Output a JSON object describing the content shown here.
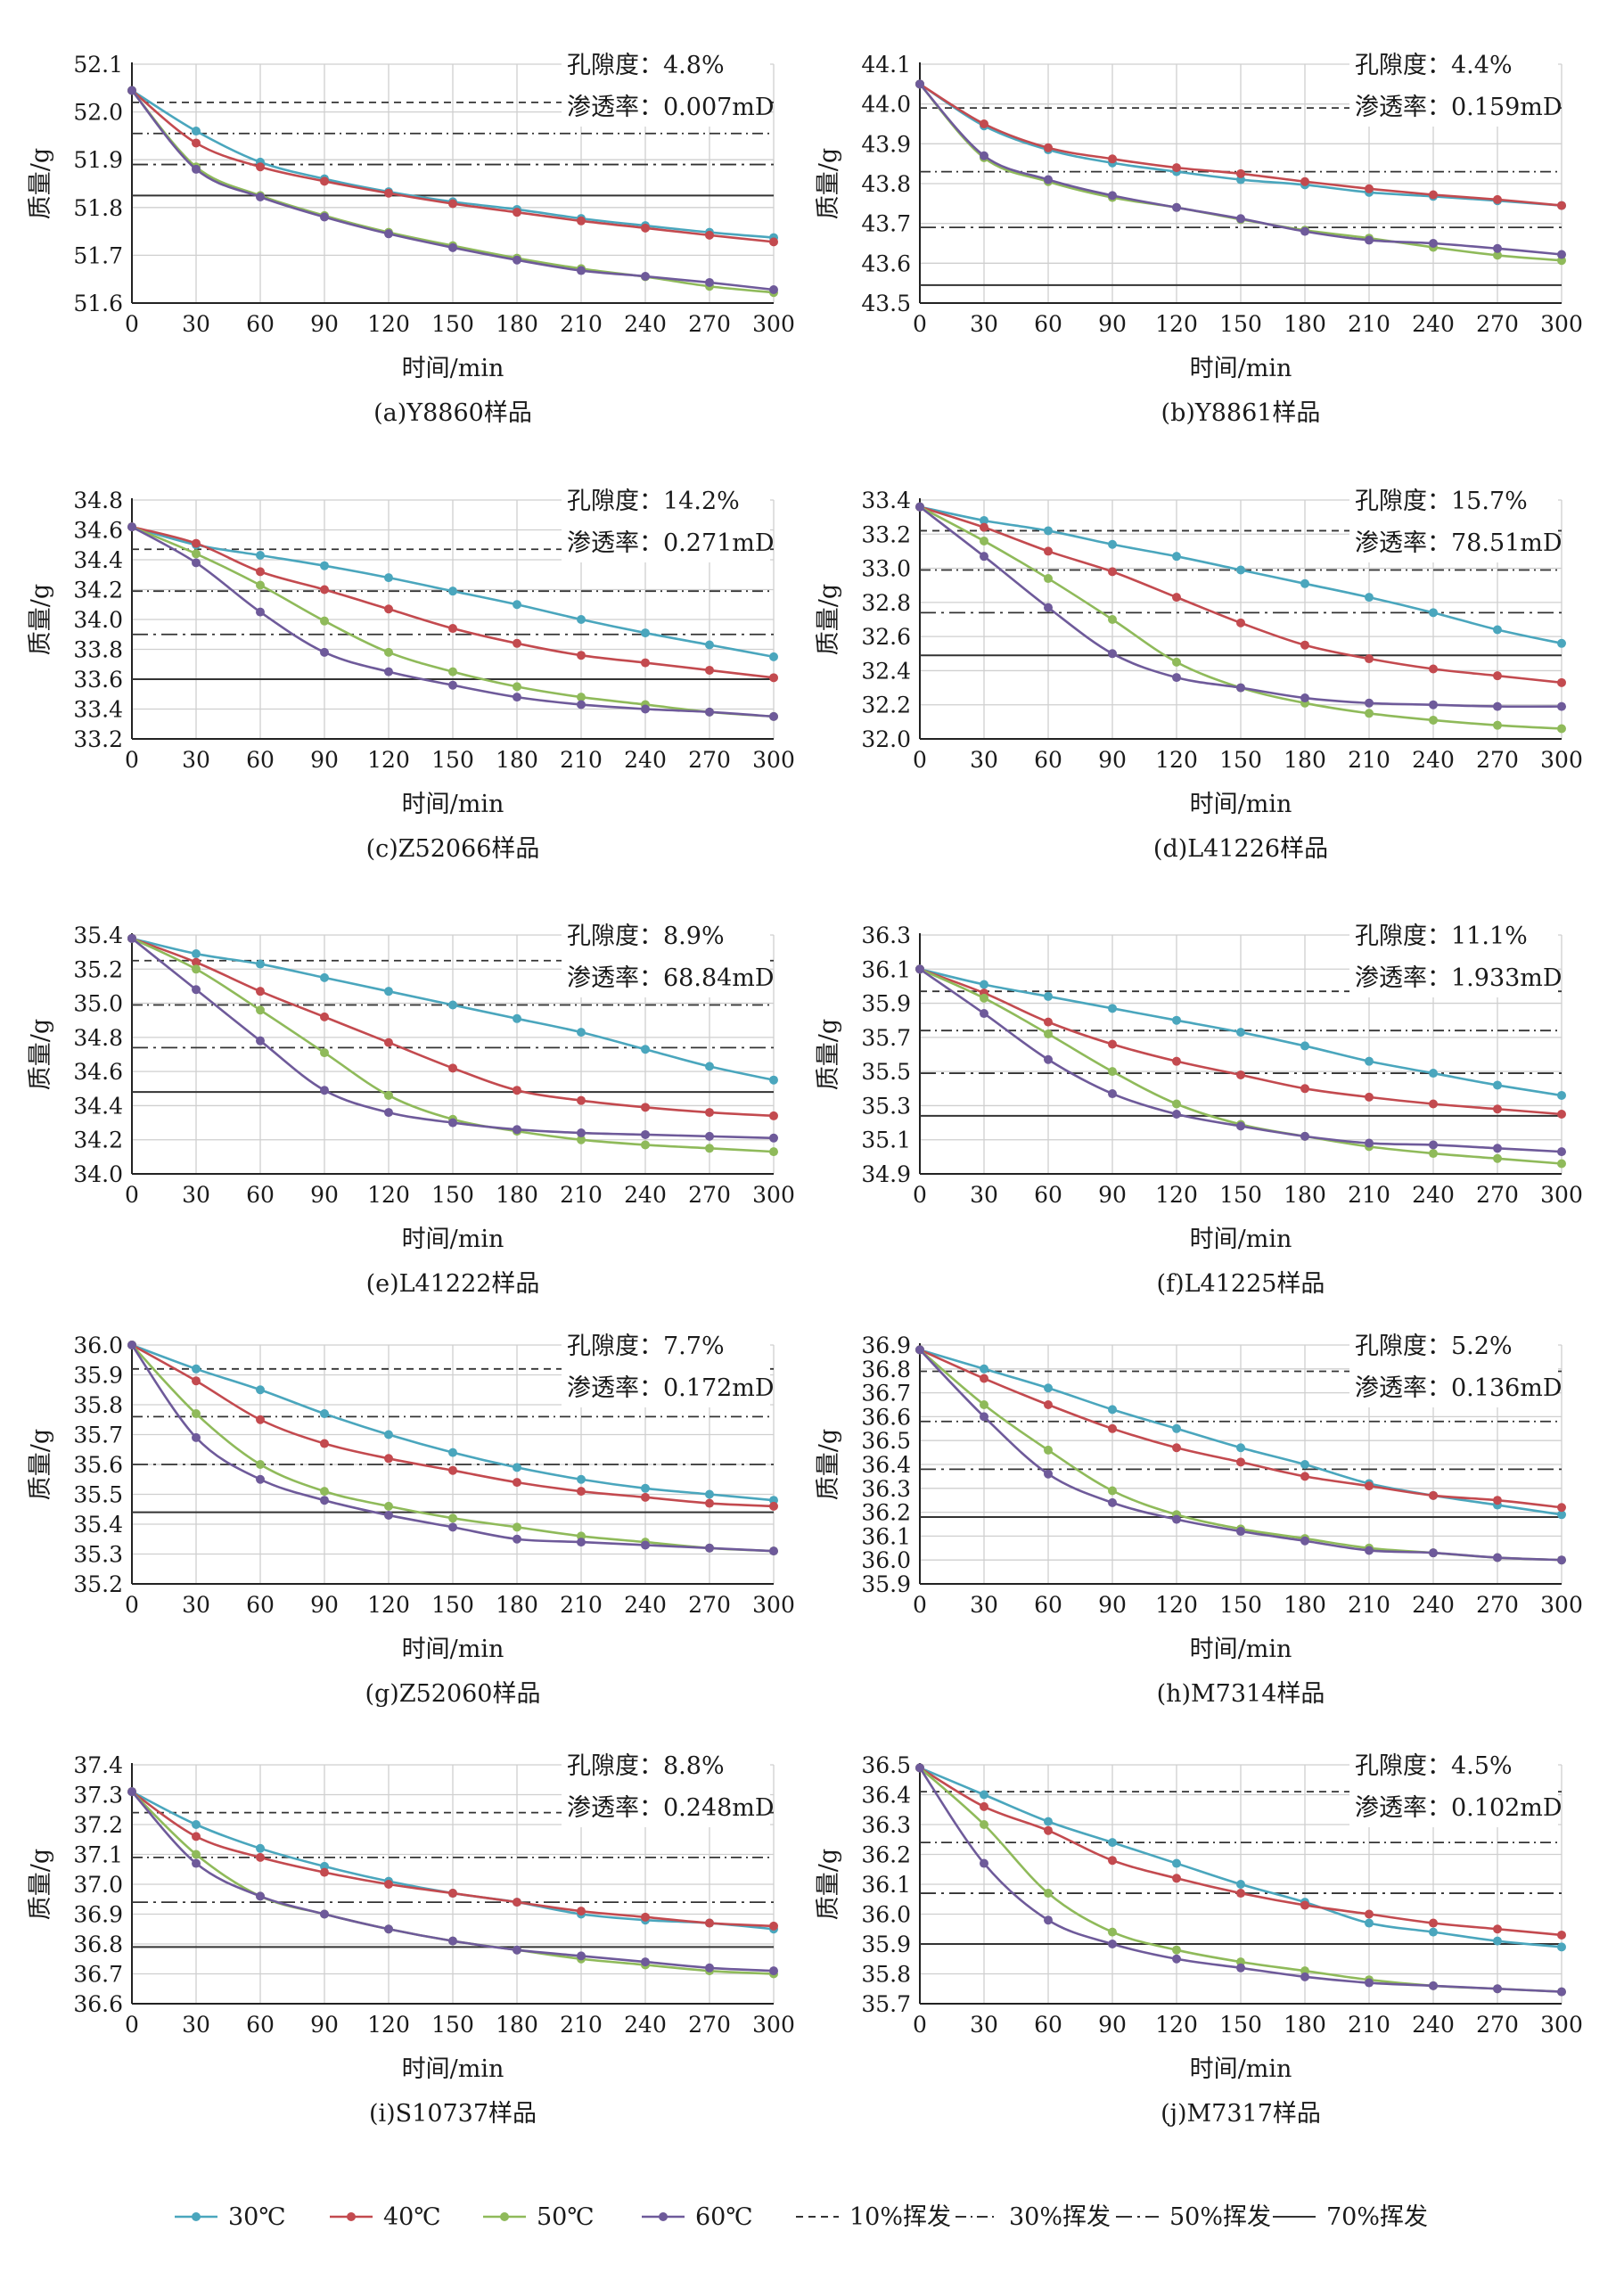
{
  "legend": {
    "series": [
      {
        "label": "30℃",
        "color": "#4aa6bd"
      },
      {
        "label": "40℃",
        "color": "#c34a4f"
      },
      {
        "label": "50℃",
        "color": "#8fba5a"
      },
      {
        "label": "60℃",
        "color": "#6e5a9a"
      }
    ],
    "thresholds": [
      {
        "label": "10%挥发",
        "dash": "8,6"
      },
      {
        "label": "30%挥发",
        "dash": "12,5,2,5"
      },
      {
        "label": "50%挥发",
        "dash": "18,6,3,6"
      },
      {
        "label": "70%挥发",
        "dash": ""
      }
    ]
  },
  "colors": {
    "30": "#4aa6bd",
    "40": "#c34a4f",
    "50": "#8fba5a",
    "60": "#6e5a9a",
    "threshold": "#333333",
    "grid": "#cfcfcf"
  },
  "chart_data": [
    {
      "type": "line",
      "caption": "(a)Y8860样品",
      "xlabel": "时间/min",
      "ylabel": "质量/g",
      "porosity": "孔隙度：4.8%",
      "permeability": "渗透率：0.007mD",
      "x": [
        0,
        30,
        60,
        90,
        120,
        150,
        180,
        210,
        240,
        270,
        300
      ],
      "ylim": [
        51.6,
        52.1
      ],
      "yticks": [
        "51.6",
        "51.7",
        "51.8",
        "51.9",
        "52.0",
        "52.1"
      ],
      "thresholds": {
        "10": 52.02,
        "30": 51.955,
        "50": 51.89,
        "70": 51.825
      },
      "series": [
        {
          "name": "30℃",
          "values": [
            52.045,
            51.96,
            51.895,
            51.86,
            51.833,
            51.812,
            51.796,
            51.777,
            51.762,
            51.748,
            51.737
          ]
        },
        {
          "name": "40℃",
          "values": [
            52.045,
            51.935,
            51.885,
            51.855,
            51.83,
            51.808,
            51.79,
            51.772,
            51.757,
            51.742,
            51.728
          ]
        },
        {
          "name": "50℃",
          "values": [
            52.045,
            51.885,
            51.825,
            51.783,
            51.748,
            51.72,
            51.694,
            51.672,
            51.655,
            51.635,
            51.622
          ]
        },
        {
          "name": "60℃",
          "values": [
            52.045,
            51.88,
            51.822,
            51.78,
            51.745,
            51.716,
            51.69,
            51.668,
            51.656,
            51.643,
            51.628
          ]
        }
      ]
    },
    {
      "type": "line",
      "caption": "(b)Y8861样品",
      "xlabel": "时间/min",
      "ylabel": "质量/g",
      "porosity": "孔隙度：4.4%",
      "permeability": "渗透率：0.159mD",
      "x": [
        0,
        30,
        60,
        90,
        120,
        150,
        180,
        210,
        240,
        270,
        300
      ],
      "ylim": [
        43.5,
        44.1
      ],
      "yticks": [
        "43.5",
        "43.6",
        "43.7",
        "43.8",
        "43.9",
        "44.0",
        "44.1"
      ],
      "thresholds": {
        "10": 43.99,
        "30": 43.83,
        "50": 43.69,
        "70": 43.545
      },
      "series": [
        {
          "name": "30℃",
          "values": [
            44.05,
            43.945,
            43.885,
            43.852,
            43.83,
            43.81,
            43.797,
            43.778,
            43.768,
            43.757,
            43.745
          ]
        },
        {
          "name": "40℃",
          "values": [
            44.05,
            43.95,
            43.89,
            43.862,
            43.84,
            43.825,
            43.805,
            43.787,
            43.772,
            43.76,
            43.745
          ]
        },
        {
          "name": "50℃",
          "values": [
            44.05,
            43.865,
            43.805,
            43.765,
            43.74,
            43.71,
            43.683,
            43.663,
            43.64,
            43.62,
            43.607
          ]
        },
        {
          "name": "60℃",
          "values": [
            44.05,
            43.87,
            43.81,
            43.77,
            43.74,
            43.712,
            43.68,
            43.658,
            43.65,
            43.637,
            43.622
          ]
        }
      ]
    },
    {
      "type": "line",
      "caption": "(c)Z52066样品",
      "xlabel": "时间/min",
      "ylabel": "质量/g",
      "porosity": "孔隙度：14.2%",
      "permeability": "渗透率：0.271mD",
      "x": [
        0,
        30,
        60,
        90,
        120,
        150,
        180,
        210,
        240,
        270,
        300
      ],
      "ylim": [
        33.2,
        34.8
      ],
      "yticks": [
        "33.2",
        "33.4",
        "33.6",
        "33.8",
        "34.0",
        "34.2",
        "34.4",
        "34.6",
        "34.8"
      ],
      "thresholds": {
        "10": 34.47,
        "30": 34.19,
        "50": 33.9,
        "70": 33.6
      },
      "series": [
        {
          "name": "30℃",
          "values": [
            34.62,
            34.5,
            34.43,
            34.36,
            34.28,
            34.19,
            34.1,
            34.0,
            33.91,
            33.83,
            33.75
          ]
        },
        {
          "name": "40℃",
          "values": [
            34.62,
            34.51,
            34.32,
            34.2,
            34.07,
            33.94,
            33.84,
            33.76,
            33.71,
            33.66,
            33.61
          ]
        },
        {
          "name": "50℃",
          "values": [
            34.62,
            34.44,
            34.23,
            33.99,
            33.78,
            33.65,
            33.55,
            33.48,
            33.43,
            33.38,
            33.35
          ]
        },
        {
          "name": "60℃",
          "values": [
            34.62,
            34.38,
            34.05,
            33.78,
            33.65,
            33.56,
            33.48,
            33.43,
            33.4,
            33.38,
            33.35
          ]
        }
      ]
    },
    {
      "type": "line",
      "caption": "(d)L41226样品",
      "xlabel": "时间/min",
      "ylabel": "质量/g",
      "porosity": "孔隙度：15.7%",
      "permeability": "渗透率：78.51mD",
      "x": [
        0,
        30,
        60,
        90,
        120,
        150,
        180,
        210,
        240,
        270,
        300
      ],
      "ylim": [
        32.0,
        33.4
      ],
      "yticks": [
        "32.0",
        "32.2",
        "32.4",
        "32.6",
        "32.8",
        "33.0",
        "33.2",
        "33.4"
      ],
      "thresholds": {
        "10": 33.22,
        "30": 32.99,
        "50": 32.74,
        "70": 32.49
      },
      "series": [
        {
          "name": "30℃",
          "values": [
            33.36,
            33.28,
            33.22,
            33.14,
            33.07,
            32.99,
            32.91,
            32.83,
            32.74,
            32.64,
            32.56
          ]
        },
        {
          "name": "40℃",
          "values": [
            33.36,
            33.24,
            33.1,
            32.98,
            32.83,
            32.68,
            32.55,
            32.47,
            32.41,
            32.37,
            32.33
          ]
        },
        {
          "name": "50℃",
          "values": [
            33.36,
            33.16,
            32.94,
            32.7,
            32.45,
            32.3,
            32.21,
            32.15,
            32.11,
            32.08,
            32.06
          ]
        },
        {
          "name": "60℃",
          "values": [
            33.36,
            33.07,
            32.77,
            32.5,
            32.36,
            32.3,
            32.24,
            32.21,
            32.2,
            32.19,
            32.19
          ]
        }
      ]
    },
    {
      "type": "line",
      "caption": "(e)L41222样品",
      "xlabel": "时间/min",
      "ylabel": "质量/g",
      "porosity": "孔隙度：8.9%",
      "permeability": "渗透率：68.84mD",
      "x": [
        0,
        30,
        60,
        90,
        120,
        150,
        180,
        210,
        240,
        270,
        300
      ],
      "ylim": [
        34.0,
        35.4
      ],
      "yticks": [
        "34.0",
        "34.2",
        "34.4",
        "34.6",
        "34.8",
        "35.0",
        "35.2",
        "35.4"
      ],
      "thresholds": {
        "10": 35.25,
        "30": 34.99,
        "50": 34.74,
        "70": 34.48
      },
      "series": [
        {
          "name": "30℃",
          "values": [
            35.38,
            35.29,
            35.23,
            35.15,
            35.07,
            34.99,
            34.91,
            34.83,
            34.73,
            34.63,
            34.55
          ]
        },
        {
          "name": "40℃",
          "values": [
            35.38,
            35.24,
            35.07,
            34.92,
            34.77,
            34.62,
            34.49,
            34.43,
            34.39,
            34.36,
            34.34
          ]
        },
        {
          "name": "50℃",
          "values": [
            35.38,
            35.2,
            34.96,
            34.71,
            34.46,
            34.32,
            34.25,
            34.2,
            34.17,
            34.15,
            34.13
          ]
        },
        {
          "name": "60℃",
          "values": [
            35.38,
            35.08,
            34.78,
            34.49,
            34.36,
            34.3,
            34.26,
            34.24,
            34.23,
            34.22,
            34.21
          ]
        }
      ]
    },
    {
      "type": "line",
      "caption": "(f)L41225样品",
      "xlabel": "时间/min",
      "ylabel": "质量/g",
      "porosity": "孔隙度：11.1%",
      "permeability": "渗透率：1.933mD",
      "x": [
        0,
        30,
        60,
        90,
        120,
        150,
        180,
        210,
        240,
        270,
        300
      ],
      "ylim": [
        34.9,
        36.3
      ],
      "yticks": [
        "34.9",
        "35.1",
        "35.3",
        "35.5",
        "35.7",
        "35.9",
        "36.1",
        "36.3"
      ],
      "thresholds": {
        "10": 35.97,
        "30": 35.74,
        "50": 35.49,
        "70": 35.24
      },
      "series": [
        {
          "name": "30℃",
          "values": [
            36.1,
            36.01,
            35.94,
            35.87,
            35.8,
            35.73,
            35.65,
            35.56,
            35.49,
            35.42,
            35.36
          ]
        },
        {
          "name": "40℃",
          "values": [
            36.1,
            35.96,
            35.79,
            35.66,
            35.56,
            35.48,
            35.4,
            35.35,
            35.31,
            35.28,
            35.25
          ]
        },
        {
          "name": "50℃",
          "values": [
            36.1,
            35.93,
            35.72,
            35.5,
            35.31,
            35.19,
            35.12,
            35.06,
            35.02,
            34.99,
            34.96
          ]
        },
        {
          "name": "60℃",
          "values": [
            36.1,
            35.84,
            35.57,
            35.37,
            35.25,
            35.18,
            35.12,
            35.08,
            35.07,
            35.05,
            35.03
          ]
        }
      ]
    },
    {
      "type": "line",
      "caption": "(g)Z52060样品",
      "xlabel": "时间/min",
      "ylabel": "质量/g",
      "porosity": "孔隙度：7.7%",
      "permeability": "渗透率：0.172mD",
      "x": [
        0,
        30,
        60,
        90,
        120,
        150,
        180,
        210,
        240,
        270,
        300
      ],
      "ylim": [
        35.2,
        36.0
      ],
      "yticks": [
        "35.2",
        "35.3",
        "35.4",
        "35.5",
        "35.6",
        "35.7",
        "35.8",
        "35.9",
        "36.0"
      ],
      "thresholds": {
        "10": 35.92,
        "30": 35.76,
        "50": 35.6,
        "70": 35.44
      },
      "series": [
        {
          "name": "30℃",
          "values": [
            36.0,
            35.92,
            35.85,
            35.77,
            35.7,
            35.64,
            35.59,
            35.55,
            35.52,
            35.5,
            35.48
          ]
        },
        {
          "name": "40℃",
          "values": [
            36.0,
            35.88,
            35.75,
            35.67,
            35.62,
            35.58,
            35.54,
            35.51,
            35.49,
            35.47,
            35.46
          ]
        },
        {
          "name": "50℃",
          "values": [
            36.0,
            35.77,
            35.6,
            35.51,
            35.46,
            35.42,
            35.39,
            35.36,
            35.34,
            35.32,
            35.31
          ]
        },
        {
          "name": "60℃",
          "values": [
            36.0,
            35.69,
            35.55,
            35.48,
            35.43,
            35.39,
            35.35,
            35.34,
            35.33,
            35.32,
            35.31
          ]
        }
      ]
    },
    {
      "type": "line",
      "caption": "(h)M7314样品",
      "xlabel": "时间/min",
      "ylabel": "质量/g",
      "porosity": "孔隙度：5.2%",
      "permeability": "渗透率：0.136mD",
      "x": [
        0,
        30,
        60,
        90,
        120,
        150,
        180,
        210,
        240,
        270,
        300
      ],
      "ylim": [
        35.9,
        36.9
      ],
      "yticks": [
        "35.9",
        "36.0",
        "36.1",
        "36.2",
        "36.3",
        "36.4",
        "36.5",
        "36.6",
        "36.7",
        "36.8",
        "36.9"
      ],
      "thresholds": {
        "10": 36.79,
        "30": 36.58,
        "50": 36.38,
        "70": 36.18
      },
      "series": [
        {
          "name": "30℃",
          "values": [
            36.88,
            36.8,
            36.72,
            36.63,
            36.55,
            36.47,
            36.4,
            36.32,
            36.27,
            36.23,
            36.19
          ]
        },
        {
          "name": "40℃",
          "values": [
            36.88,
            36.76,
            36.65,
            36.55,
            36.47,
            36.41,
            36.35,
            36.31,
            36.27,
            36.25,
            36.22
          ]
        },
        {
          "name": "50℃",
          "values": [
            36.88,
            36.65,
            36.46,
            36.29,
            36.19,
            36.13,
            36.09,
            36.05,
            36.03,
            36.01,
            36.0
          ]
        },
        {
          "name": "60℃",
          "values": [
            36.88,
            36.6,
            36.36,
            36.24,
            36.17,
            36.12,
            36.08,
            36.04,
            36.03,
            36.01,
            36.0
          ]
        }
      ]
    },
    {
      "type": "line",
      "caption": "(i)S10737样品",
      "xlabel": "时间/min",
      "ylabel": "质量/g",
      "porosity": "孔隙度：8.8%",
      "permeability": "渗透率：0.248mD",
      "x": [
        0,
        30,
        60,
        90,
        120,
        150,
        180,
        210,
        240,
        270,
        300
      ],
      "ylim": [
        36.6,
        37.4
      ],
      "yticks": [
        "36.6",
        "36.7",
        "36.8",
        "36.9",
        "37.0",
        "37.1",
        "37.2",
        "37.3",
        "37.4"
      ],
      "thresholds": {
        "10": 37.24,
        "30": 37.09,
        "50": 36.94,
        "70": 36.79
      },
      "series": [
        {
          "name": "30℃",
          "values": [
            37.31,
            37.2,
            37.12,
            37.06,
            37.01,
            36.97,
            36.94,
            36.9,
            36.88,
            36.87,
            36.85
          ]
        },
        {
          "name": "40℃",
          "values": [
            37.31,
            37.16,
            37.09,
            37.04,
            37.0,
            36.97,
            36.94,
            36.91,
            36.89,
            36.87,
            36.86
          ]
        },
        {
          "name": "50℃",
          "values": [
            37.31,
            37.1,
            36.96,
            36.9,
            36.85,
            36.81,
            36.78,
            36.75,
            36.73,
            36.71,
            36.7
          ]
        },
        {
          "name": "60℃",
          "values": [
            37.31,
            37.07,
            36.96,
            36.9,
            36.85,
            36.81,
            36.78,
            36.76,
            36.74,
            36.72,
            36.71
          ]
        }
      ]
    },
    {
      "type": "line",
      "caption": "(j)M7317样品",
      "xlabel": "时间/min",
      "ylabel": "质量/g",
      "porosity": "孔隙度：4.5%",
      "permeability": "渗透率：0.102mD",
      "x": [
        0,
        30,
        60,
        90,
        120,
        150,
        180,
        210,
        240,
        270,
        300
      ],
      "ylim": [
        35.7,
        36.5
      ],
      "yticks": [
        "35.7",
        "35.8",
        "35.9",
        "36.0",
        "36.1",
        "36.2",
        "36.3",
        "36.4",
        "36.5"
      ],
      "thresholds": {
        "10": 36.41,
        "30": 36.24,
        "50": 36.07,
        "70": 35.9
      },
      "series": [
        {
          "name": "30℃",
          "values": [
            36.49,
            36.4,
            36.31,
            36.24,
            36.17,
            36.1,
            36.04,
            35.97,
            35.94,
            35.91,
            35.89
          ]
        },
        {
          "name": "40℃",
          "values": [
            36.49,
            36.36,
            36.28,
            36.18,
            36.12,
            36.07,
            36.03,
            36.0,
            35.97,
            35.95,
            35.93
          ]
        },
        {
          "name": "50℃",
          "values": [
            36.49,
            36.3,
            36.07,
            35.94,
            35.88,
            35.84,
            35.81,
            35.78,
            35.76,
            35.75,
            35.74
          ]
        },
        {
          "name": "60℃",
          "values": [
            36.49,
            36.17,
            35.98,
            35.9,
            35.85,
            35.82,
            35.79,
            35.77,
            35.76,
            35.75,
            35.74
          ]
        }
      ]
    }
  ]
}
